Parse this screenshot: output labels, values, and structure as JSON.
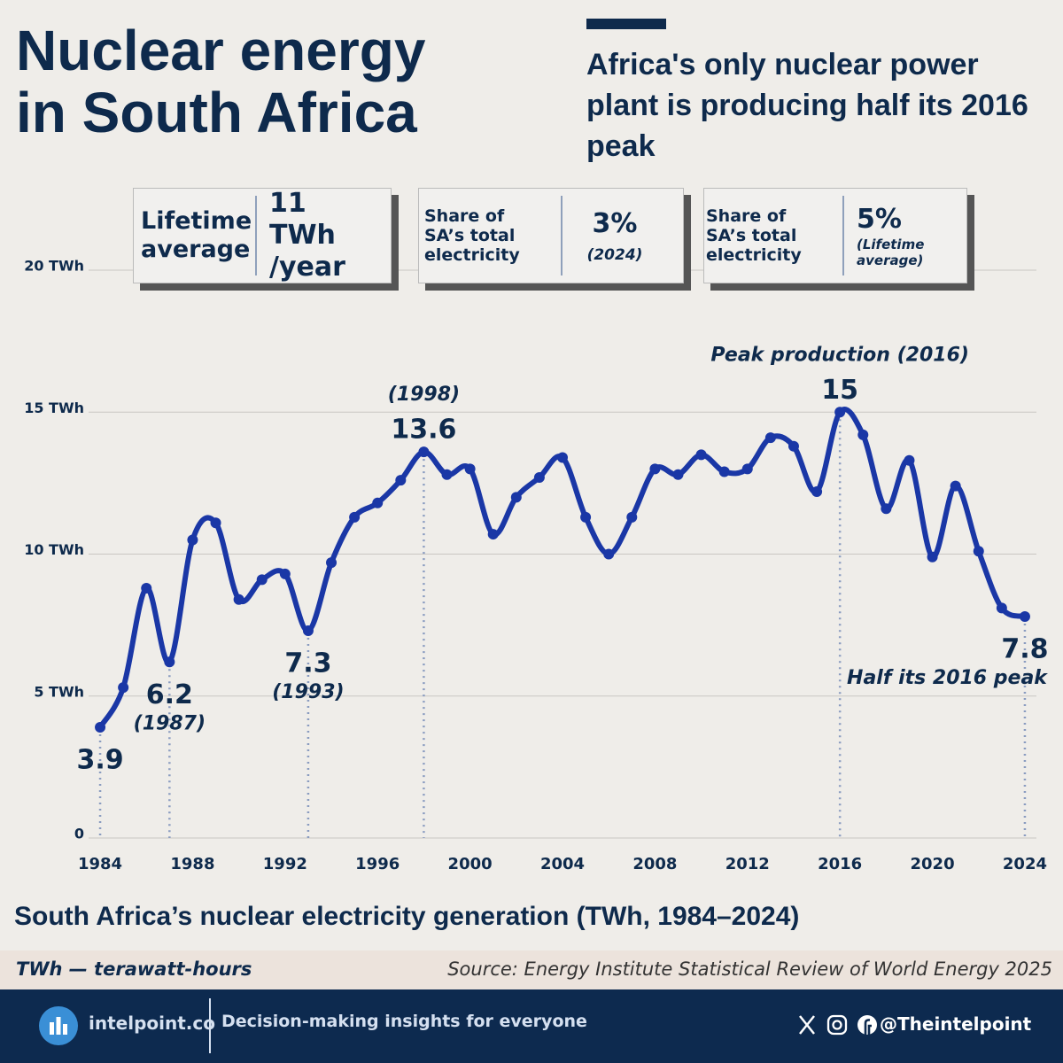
{
  "header": {
    "title": "Nuclear energy in South Africa",
    "subtitle": "Africa's only nuclear power plant is producing half its 2016 peak"
  },
  "stats": [
    {
      "label": "Lifetime average",
      "value": "11 TWh /year"
    },
    {
      "label": "Share of SA’s total electricity",
      "value": "3%",
      "note": "(2024)"
    },
    {
      "label": "Share of SA’s total electricity",
      "value": "5%",
      "note": "(Lifetime average)"
    }
  ],
  "chart_data": {
    "type": "line",
    "title": "South Africa’s nuclear electricity generation (TWh, 1984–2024)",
    "x": [
      1984,
      1985,
      1986,
      1987,
      1988,
      1989,
      1990,
      1991,
      1992,
      1993,
      1994,
      1995,
      1996,
      1997,
      1998,
      1999,
      2000,
      2001,
      2002,
      2003,
      2004,
      2005,
      2006,
      2007,
      2008,
      2009,
      2010,
      2011,
      2012,
      2013,
      2014,
      2015,
      2016,
      2017,
      2018,
      2019,
      2020,
      2021,
      2022,
      2023,
      2024
    ],
    "values": [
      3.9,
      5.3,
      8.8,
      6.2,
      10.5,
      11.1,
      8.4,
      9.1,
      9.3,
      7.3,
      9.7,
      11.3,
      11.8,
      12.6,
      13.6,
      12.8,
      13.0,
      10.7,
      12.0,
      12.7,
      13.4,
      11.3,
      10.0,
      11.3,
      13.0,
      12.8,
      13.5,
      12.9,
      13.0,
      14.1,
      13.8,
      12.2,
      15,
      14.2,
      11.6,
      13.3,
      9.9,
      12.4,
      10.1,
      8.1,
      7.8
    ],
    "value_labels": [
      "3.9",
      null,
      null,
      "6.2",
      null,
      null,
      null,
      null,
      null,
      "7.3",
      null,
      null,
      null,
      null,
      "13.6",
      null,
      null,
      null,
      null,
      null,
      null,
      null,
      null,
      null,
      null,
      null,
      null,
      null,
      null,
      null,
      null,
      null,
      "15",
      null,
      null,
      null,
      null,
      null,
      null,
      null,
      "7.8"
    ],
    "point_notes": [
      null,
      null,
      null,
      "(1987)",
      null,
      null,
      null,
      null,
      null,
      "(1993)",
      null,
      null,
      null,
      null,
      "(1998)",
      null,
      null,
      null,
      null,
      null,
      null,
      null,
      null,
      null,
      null,
      null,
      null,
      null,
      null,
      null,
      null,
      null,
      "Peak production (2016)",
      null,
      null,
      null,
      null,
      null,
      null,
      null,
      "Half its 2016 peak"
    ],
    "color": "#1a37a6",
    "xlim": [
      1983.5,
      2024.5
    ],
    "xticks": [
      1984,
      1988,
      1992,
      1996,
      2000,
      2004,
      2008,
      2012,
      2016,
      2020,
      2024
    ],
    "ylim": [
      0,
      20
    ],
    "yticks": [
      0,
      {
        "value": 5,
        "label": "5 TWh"
      },
      {
        "value": 10,
        "label": "10 TWh"
      },
      {
        "value": 15,
        "label": "15 TWh"
      },
      {
        "value": 20,
        "label": "20 TWh"
      }
    ],
    "grid": true
  },
  "notes": {
    "unit": "TWh — terawatt-hours",
    "source": "Source: Energy Institute Statistical Review of World Energy 2025"
  },
  "footer": {
    "site": "intelpoint.co",
    "tagline": "Decision-making insights for everyone",
    "handle": "@Theintelpoint"
  }
}
